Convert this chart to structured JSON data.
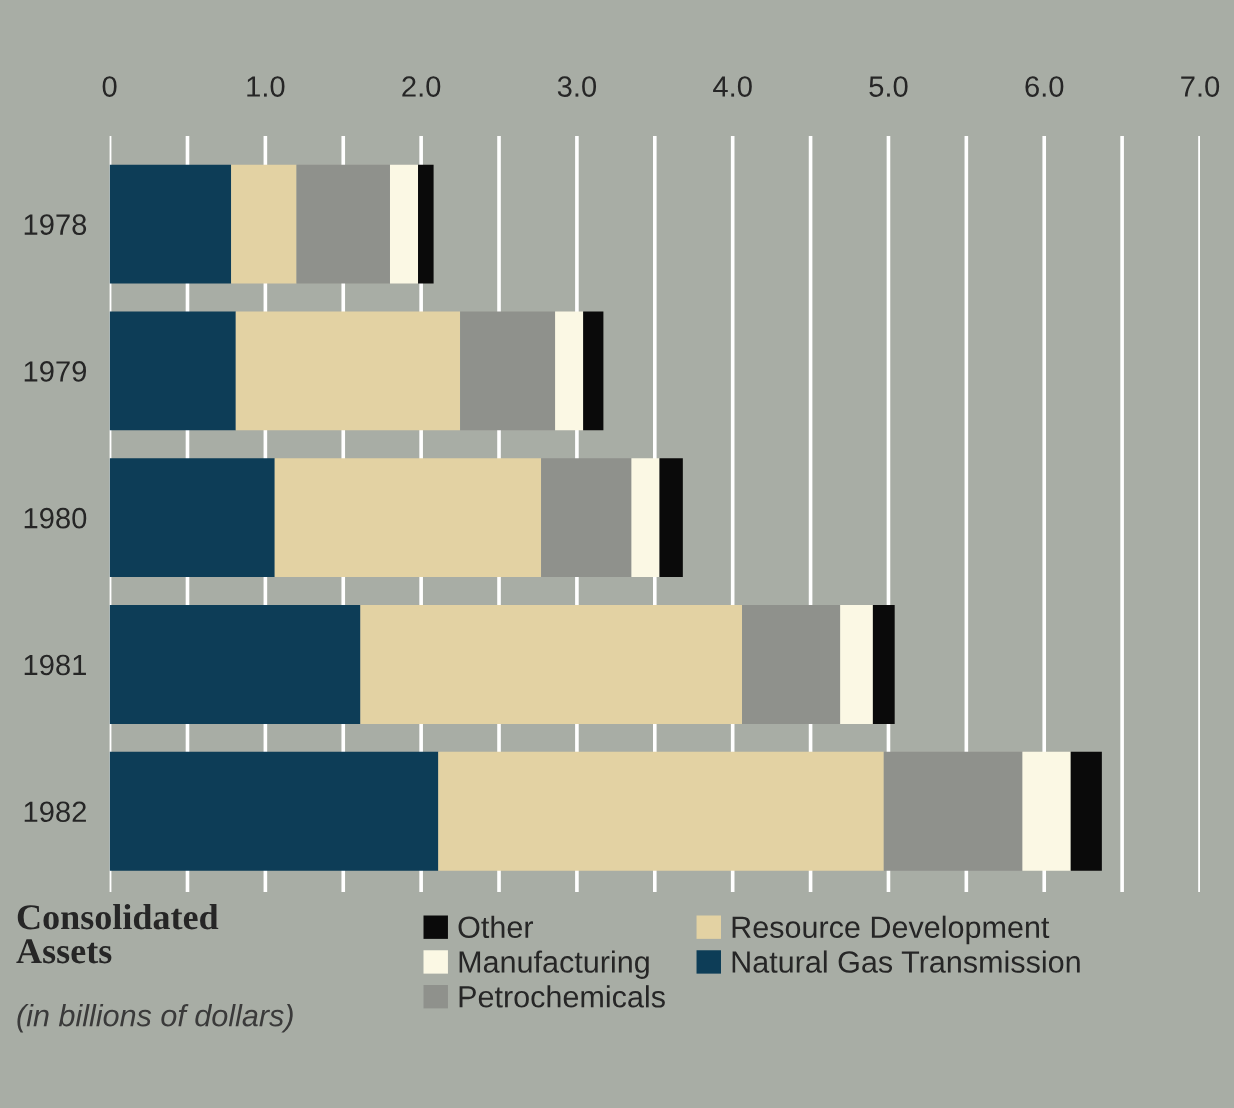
{
  "chart_data": {
    "type": "bar",
    "orientation": "horizontal",
    "stacked": true,
    "title": "Consolidated Assets",
    "subtitle": "(in billions of dollars)",
    "categories": [
      "1978",
      "1979",
      "1980",
      "1981",
      "1982"
    ],
    "series": [
      {
        "name": "Natural Gas Transmission",
        "color": "#0d3d57",
        "values": [
          0.78,
          0.81,
          1.06,
          1.61,
          2.11
        ]
      },
      {
        "name": "Resource Development",
        "color": "#e3d2a3",
        "values": [
          0.42,
          1.44,
          1.71,
          2.45,
          2.86
        ]
      },
      {
        "name": "Petrochemicals",
        "color": "#8f918c",
        "values": [
          0.6,
          0.61,
          0.58,
          0.63,
          0.89
        ]
      },
      {
        "name": "Manufacturing",
        "color": "#fbf8e4",
        "values": [
          0.18,
          0.18,
          0.18,
          0.21,
          0.31
        ]
      },
      {
        "name": "Other",
        "color": "#0a0a0a",
        "values": [
          0.1,
          0.13,
          0.15,
          0.14,
          0.2
        ]
      }
    ],
    "xlim": [
      0,
      7.0
    ],
    "xticks": [
      {
        "value": 0,
        "label": "0"
      },
      {
        "value": 0.5,
        "label": null
      },
      {
        "value": 1.0,
        "label": "1.0"
      },
      {
        "value": 1.5,
        "label": null
      },
      {
        "value": 2.0,
        "label": "2.0"
      },
      {
        "value": 2.5,
        "label": null
      },
      {
        "value": 3.0,
        "label": "3.0"
      },
      {
        "value": 3.5,
        "label": null
      },
      {
        "value": 4.0,
        "label": "4.0"
      },
      {
        "value": 4.5,
        "label": null
      },
      {
        "value": 5.0,
        "label": "5.0"
      },
      {
        "value": 5.5,
        "label": null
      },
      {
        "value": 6.0,
        "label": "6.0"
      },
      {
        "value": 6.5,
        "label": null
      },
      {
        "value": 7.0,
        "label": "7.0"
      }
    ],
    "grid": "x",
    "legend": "bottom"
  }
}
